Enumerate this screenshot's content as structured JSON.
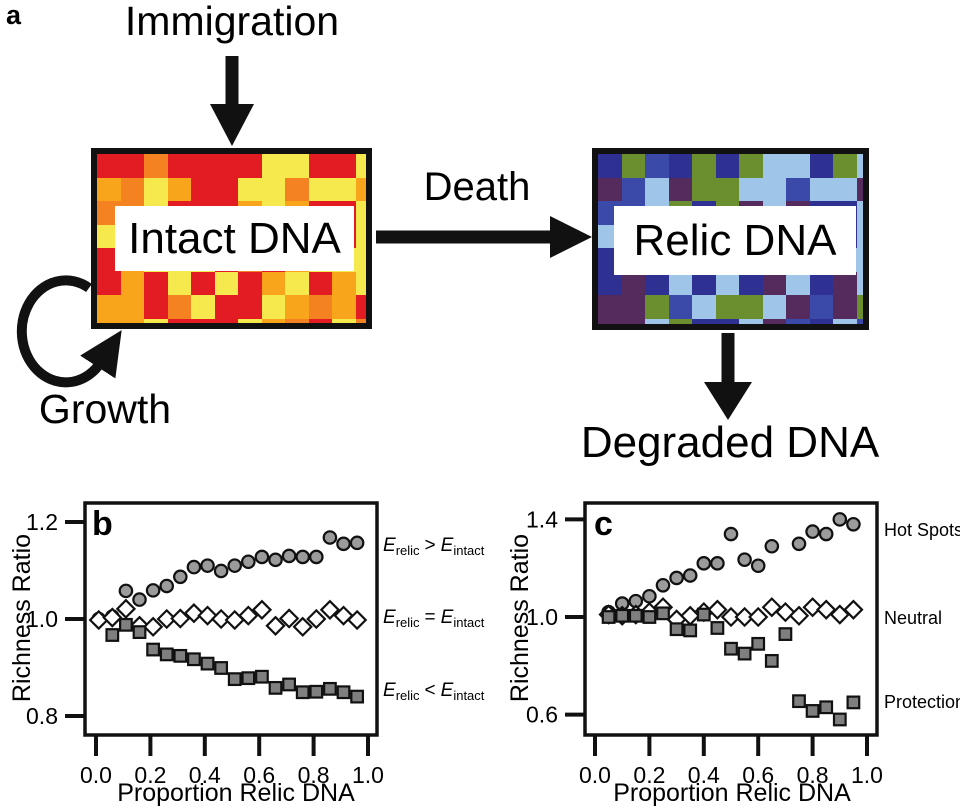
{
  "figure": {
    "panel_a": {
      "panel_label": "a",
      "immigration_label": "Immigration",
      "death_label": "Death",
      "growth_label": "Growth",
      "degraded_label": "Degraded DNA",
      "intact_box": {
        "label": "Intact DNA",
        "palette": [
          "#e31b23",
          "#f6e94e",
          "#f58220",
          "#f9a51b",
          "#e31b23",
          "#f6e94e"
        ]
      },
      "relic_box": {
        "label": "Relic DNA",
        "palette": [
          "#6b8e2e",
          "#9fc5e8",
          "#3b4aa8",
          "#552a5c",
          "#2e3192",
          "#9fc5e8"
        ]
      },
      "arrow_color": "#111111"
    }
  },
  "chart_data": [
    {
      "panel": "b",
      "type": "scatter",
      "xlabel": "Proportion Relic DNA",
      "ylabel": "Richness Ratio",
      "xticks": [
        0.0,
        0.2,
        0.4,
        0.6,
        0.8,
        1.0
      ],
      "yticks": [
        0.8,
        1.0,
        1.2
      ],
      "xlim": [
        -0.04,
        1.03
      ],
      "ylim": [
        0.76,
        1.24
      ],
      "grid": false,
      "legend_position": "right",
      "series": [
        {
          "name": "E_relic > E_intact",
          "marker": "circle",
          "fill": "#9b9b9b",
          "x": [
            0.01,
            0.06,
            0.11,
            0.16,
            0.21,
            0.26,
            0.31,
            0.36,
            0.41,
            0.46,
            0.51,
            0.56,
            0.61,
            0.66,
            0.71,
            0.76,
            0.81,
            0.86,
            0.91,
            0.96
          ],
          "y": [
            1.0,
            1.005,
            1.058,
            1.04,
            1.059,
            1.068,
            1.087,
            1.107,
            1.11,
            1.099,
            1.11,
            1.118,
            1.128,
            1.122,
            1.13,
            1.128,
            1.128,
            1.168,
            1.155,
            1.157
          ]
        },
        {
          "name": "E_relic = E_intact",
          "marker": "diamond",
          "fill": "#ffffff",
          "x": [
            0.01,
            0.06,
            0.11,
            0.16,
            0.21,
            0.26,
            0.31,
            0.36,
            0.41,
            0.46,
            0.51,
            0.56,
            0.61,
            0.66,
            0.71,
            0.76,
            0.81,
            0.86,
            0.91,
            0.96
          ],
          "y": [
            0.998,
            1.003,
            1.021,
            0.986,
            0.984,
            1.0,
            1.001,
            1.012,
            1.007,
            1.0,
            0.998,
            1.007,
            1.019,
            0.986,
            1.001,
            0.984,
            1.0,
            1.019,
            1.007,
            0.998
          ]
        },
        {
          "name": "E_relic < E_intact",
          "marker": "square",
          "fill": "#7f7f7f",
          "x": [
            0.06,
            0.11,
            0.16,
            0.21,
            0.26,
            0.31,
            0.36,
            0.41,
            0.46,
            0.51,
            0.56,
            0.61,
            0.66,
            0.71,
            0.76,
            0.81,
            0.86,
            0.91,
            0.96
          ],
          "y": [
            0.967,
            0.988,
            0.973,
            0.937,
            0.927,
            0.924,
            0.917,
            0.908,
            0.899,
            0.876,
            0.878,
            0.881,
            0.858,
            0.865,
            0.849,
            0.85,
            0.856,
            0.849,
            0.84
          ]
        }
      ],
      "legend": [
        {
          "e1": "E",
          "s1": "relic",
          "op": ">",
          "e2": "E",
          "s2": "intact"
        },
        {
          "e1": "E",
          "s1": "relic",
          "op": "=",
          "e2": "E",
          "s2": "intact"
        },
        {
          "e1": "E",
          "s1": "relic",
          "op": "<",
          "e2": "E",
          "s2": "intact"
        }
      ]
    },
    {
      "panel": "c",
      "type": "scatter",
      "xlabel": "Proportion Relic DNA",
      "ylabel": "Richness Ratio",
      "xticks": [
        0.0,
        0.2,
        0.4,
        0.6,
        0.8,
        1.0
      ],
      "yticks": [
        0.6,
        1.0,
        1.4
      ],
      "xlim": [
        -0.04,
        1.03
      ],
      "ylim": [
        0.51,
        1.47
      ],
      "grid": false,
      "legend_position": "right",
      "series": [
        {
          "name": "Hot Spots",
          "marker": "circle",
          "fill": "#9b9b9b",
          "x": [
            0.05,
            0.1,
            0.15,
            0.2,
            0.25,
            0.3,
            0.35,
            0.4,
            0.45,
            0.5,
            0.55,
            0.6,
            0.65,
            0.75,
            0.8,
            0.85,
            0.9,
            0.95
          ],
          "y": [
            1.02,
            1.055,
            1.065,
            1.085,
            1.13,
            1.16,
            1.17,
            1.22,
            1.22,
            1.34,
            1.235,
            1.21,
            1.29,
            1.3,
            1.35,
            1.34,
            1.4,
            1.38
          ]
        },
        {
          "name": "Neutral",
          "marker": "diamond",
          "fill": "#ffffff",
          "x": [
            0.05,
            0.1,
            0.15,
            0.2,
            0.25,
            0.3,
            0.35,
            0.4,
            0.45,
            0.5,
            0.55,
            0.6,
            0.65,
            0.7,
            0.75,
            0.8,
            0.85,
            0.9,
            0.95
          ],
          "y": [
            1.01,
            1.005,
            1.01,
            1.02,
            1.04,
            0.99,
            1.005,
            1.02,
            1.03,
            1.0,
            1.0,
            1.0,
            1.04,
            1.02,
            1.005,
            1.04,
            1.03,
            1.01,
            1.03
          ]
        },
        {
          "name": "Protection",
          "marker": "square",
          "fill": "#7f7f7f",
          "x": [
            0.05,
            0.1,
            0.15,
            0.2,
            0.25,
            0.3,
            0.35,
            0.4,
            0.45,
            0.5,
            0.55,
            0.6,
            0.65,
            0.7,
            0.75,
            0.8,
            0.85,
            0.9,
            0.95
          ],
          "y": [
            1.0,
            1.005,
            1.005,
            1.0,
            1.015,
            0.95,
            0.945,
            1.01,
            0.955,
            0.87,
            0.85,
            0.89,
            0.82,
            0.93,
            0.655,
            0.615,
            0.63,
            0.58,
            0.65
          ]
        }
      ],
      "right_labels": [
        "Hot Spots",
        "Neutral",
        "Protection"
      ]
    }
  ]
}
